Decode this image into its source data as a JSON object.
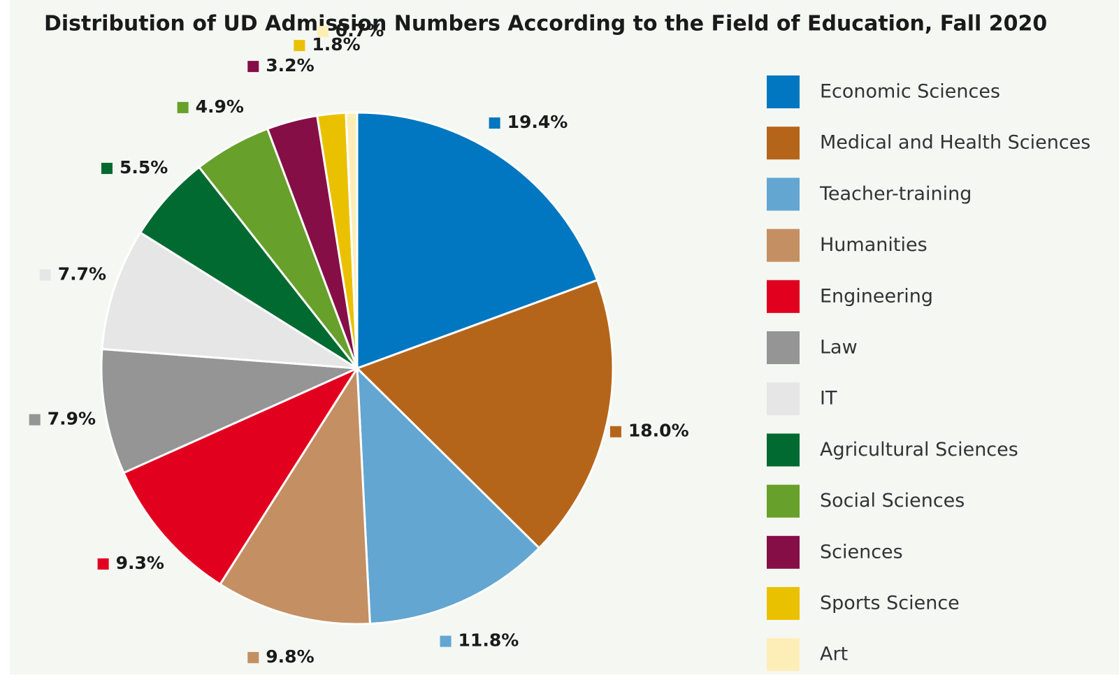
{
  "chart_data": {
    "type": "pie",
    "title": "Distribution of UD Admission Numbers According to the Field of Education, Fall 2020",
    "categories": [
      "Economic Sciences",
      "Medical and Health Sciences",
      "Teacher-training",
      "Humanities",
      "Engineering",
      "Law",
      "IT",
      "Agricultural Sciences",
      "Social Sciences",
      "Sciences",
      "Sports Science",
      "Art"
    ],
    "values": [
      19.4,
      18.0,
      11.8,
      9.8,
      9.3,
      7.9,
      7.7,
      5.5,
      4.9,
      3.2,
      1.8,
      0.7
    ],
    "value_labels": [
      "19.4%",
      "18.0%",
      "11.8%",
      "9.8%",
      "9.3%",
      "7.9%",
      "7.7%",
      "5.5%",
      "4.9%",
      "3.2%",
      "1.8%",
      "0.7%"
    ],
    "colors": [
      "#0077c0",
      "#b5651a",
      "#62a6d1",
      "#c48f63",
      "#e2001f",
      "#959595",
      "#e6e6e6",
      "#006a30",
      "#67a02a",
      "#860e46",
      "#eac100",
      "#fdeeb8"
    ],
    "legend": "right"
  }
}
